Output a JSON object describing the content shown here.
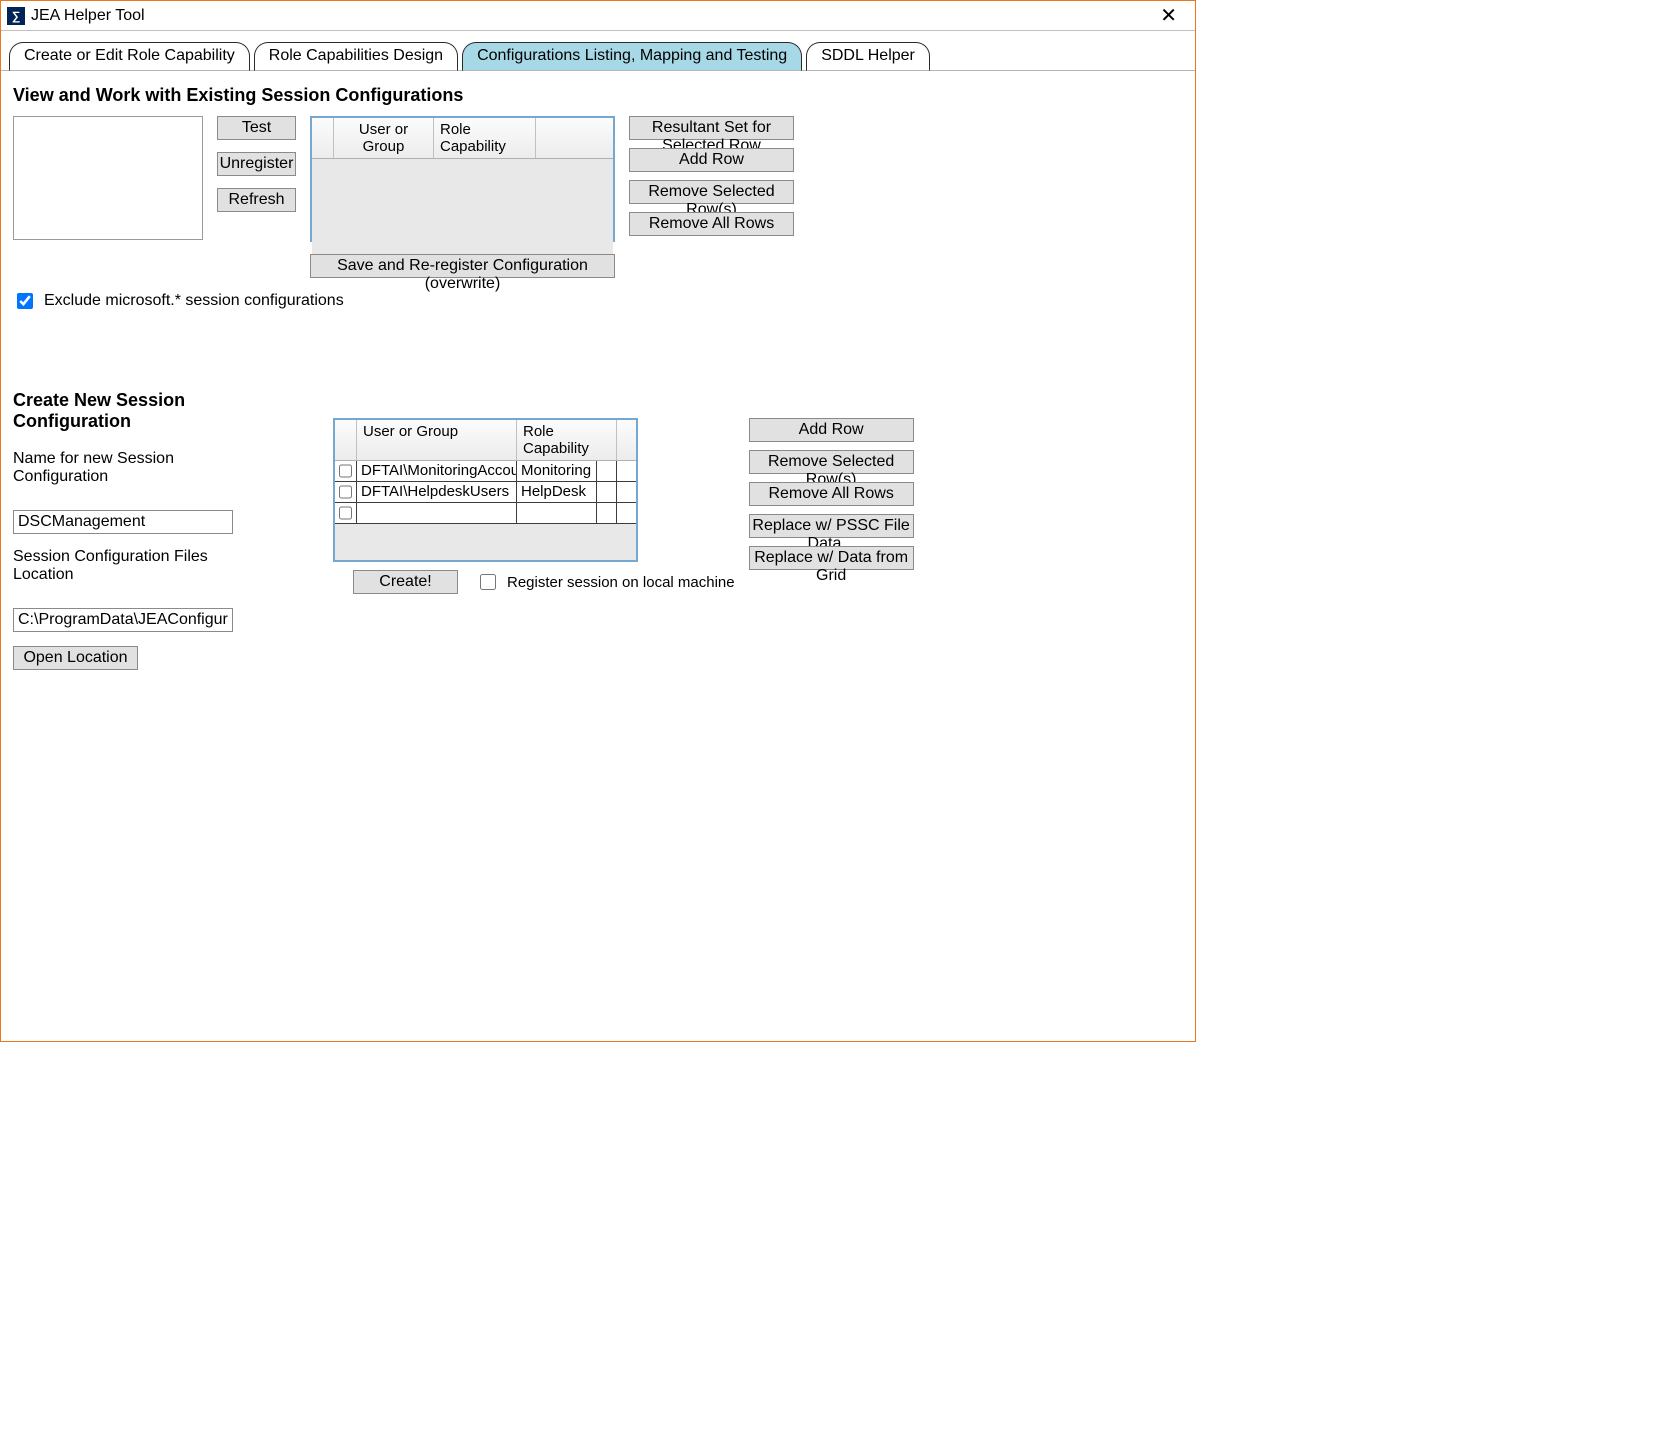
{
  "window": {
    "title": "JEA Helper Tool",
    "close_glyph": "✕"
  },
  "tabs": [
    "Create or Edit Role Capability",
    "Role Capabilities Design",
    "Configurations Listing, Mapping and Testing",
    "SDDL Helper"
  ],
  "active_tab_index": 2,
  "section1": {
    "heading": "View and Work with Existing Session Configurations",
    "buttons": {
      "test": "Test",
      "unregister": "Unregister",
      "refresh": "Refresh"
    },
    "grid_headers": {
      "col1": "User or Group",
      "col2": "Role Capability"
    },
    "right_buttons": {
      "resultant": "Resultant Set for Selected Row",
      "add": "Add Row",
      "remove_sel": "Remove Selected Row(s)",
      "remove_all": "Remove All Rows"
    },
    "save_button": "Save and Re-register Configuration (overwrite)",
    "exclude_checkbox": {
      "checked": true,
      "label": "Exclude microsoft.* session configurations"
    }
  },
  "section2": {
    "heading": "Create New Session Configuration",
    "name_label": "Name for new Session Configuration",
    "name_value": "DSCManagement",
    "loc_label": "Session Configuration Files Location",
    "loc_value": "C:\\ProgramData\\JEAConfiguration",
    "open_loc_button": "Open Location",
    "grid_headers": {
      "col1": "User or Group",
      "col2": "Role Capability"
    },
    "rows": [
      {
        "user": "DFTAI\\MonitoringAccounts",
        "role": "Monitoring"
      },
      {
        "user": "DFTAI\\HelpdeskUsers",
        "role": "HelpDesk"
      },
      {
        "user": "",
        "role": ""
      }
    ],
    "right_buttons": {
      "add": "Add Row",
      "remove_sel": "Remove Selected Row(s)",
      "remove_all": "Remove All Rows",
      "replace_pssc": "Replace w/ PSSC File Data...",
      "replace_grid": "Replace w/ Data from Grid"
    },
    "create_button": "Create!",
    "register_checkbox": {
      "checked": false,
      "label": "Register session on local machine"
    }
  }
}
